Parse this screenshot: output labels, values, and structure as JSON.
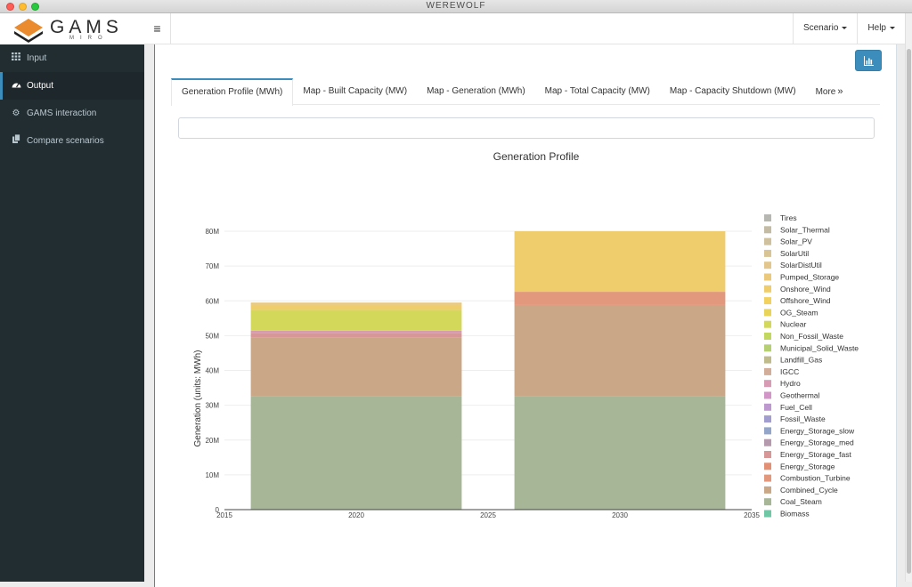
{
  "window": {
    "title": "WEREWOLF"
  },
  "logo": {
    "brand": "GAMS",
    "sub": "MIRO"
  },
  "header": {
    "menu_icon": "hamburger-icon",
    "scenario_label": "Scenario",
    "help_label": "Help"
  },
  "sidebar": {
    "items": [
      {
        "label": "Input",
        "icon": "grid-icon",
        "active": false
      },
      {
        "label": "Output",
        "icon": "dashboard-icon",
        "active": true
      },
      {
        "label": "GAMS interaction",
        "icon": "gear-icon",
        "active": false
      },
      {
        "label": "Compare scenarios",
        "icon": "copy-icon",
        "active": false
      }
    ]
  },
  "tabs": [
    {
      "label": "Generation Profile (MWh)",
      "active": true
    },
    {
      "label": "Map - Built Capacity (MW)",
      "active": false
    },
    {
      "label": "Map - Generation (MWh)",
      "active": false
    },
    {
      "label": "Map - Total Capacity (MW)",
      "active": false
    },
    {
      "label": "Map - Capacity Shutdown (MW)",
      "active": false
    }
  ],
  "more_label": "More",
  "search": {
    "value": "",
    "placeholder": ""
  },
  "colors": {
    "accent": "#3c8dbc",
    "sidebar_bg": "#222d32"
  },
  "chart_data": {
    "type": "bar",
    "stacked": true,
    "title": "Generation Profile",
    "xlabel": "",
    "ylabel": "Generation (units: MWh)",
    "x": [
      2020,
      2030
    ],
    "xlim": [
      2015,
      2035
    ],
    "xticks": [
      "2015",
      "2020",
      "2025",
      "2030",
      "2035"
    ],
    "ylim": [
      0,
      80000000
    ],
    "yticks": [
      "0",
      "10M",
      "20M",
      "30M",
      "40M",
      "50M",
      "60M",
      "70M",
      "80M"
    ],
    "grid": true,
    "legend_position": "right",
    "legend": [
      {
        "name": "Tires",
        "color": "#b7b7b2"
      },
      {
        "name": "Solar_Thermal",
        "color": "#c4bba4"
      },
      {
        "name": "Solar_PV",
        "color": "#cfc09e"
      },
      {
        "name": "SolarUtil",
        "color": "#d9c496"
      },
      {
        "name": "SolarDistUtil",
        "color": "#e2c68c"
      },
      {
        "name": "Pumped_Storage",
        "color": "#eac97d"
      },
      {
        "name": "Onshore_Wind",
        "color": "#f0cd6c"
      },
      {
        "name": "Offshore_Wind",
        "color": "#f3d15f"
      },
      {
        "name": "OG_Steam",
        "color": "#e7d458"
      },
      {
        "name": "Nuclear",
        "color": "#d4d85a"
      },
      {
        "name": "Non_Fossil_Waste",
        "color": "#c2d760"
      },
      {
        "name": "Municipal_Solid_Waste",
        "color": "#b6cf72"
      },
      {
        "name": "Landfill_Gas",
        "color": "#c0bb8b"
      },
      {
        "name": "IGCC",
        "color": "#d2ad99"
      },
      {
        "name": "Hydro",
        "color": "#d89bb4"
      },
      {
        "name": "Geothermal",
        "color": "#d394c7"
      },
      {
        "name": "Fuel_Cell",
        "color": "#bd98cf"
      },
      {
        "name": "Fossil_Waste",
        "color": "#a19ecf"
      },
      {
        "name": "Energy_Storage_slow",
        "color": "#93a5c8"
      },
      {
        "name": "Energy_Storage_med",
        "color": "#b59aae"
      },
      {
        "name": "Energy_Storage_fast",
        "color": "#d79797"
      },
      {
        "name": "Energy_Storage",
        "color": "#e28f73"
      },
      {
        "name": "Combustion_Turbine",
        "color": "#e2987c"
      },
      {
        "name": "Combined_Cycle",
        "color": "#c9a787"
      },
      {
        "name": "Coal_Steam",
        "color": "#a6b697"
      },
      {
        "name": "Biomass",
        "color": "#6fc7a5"
      }
    ],
    "series": [
      {
        "name": "Coal_Steam",
        "values": [
          32500000,
          32500000
        ]
      },
      {
        "name": "Combined_Cycle",
        "values": [
          17000000,
          26300000
        ]
      },
      {
        "name": "Combustion_Turbine",
        "values": [
          0,
          3800000
        ]
      },
      {
        "name": "Energy_Storage_fast",
        "values": [
          1300000,
          0
        ]
      },
      {
        "name": "Hydro",
        "values": [
          600000,
          0
        ]
      },
      {
        "name": "Nuclear",
        "values": [
          6000000,
          0
        ]
      },
      {
        "name": "Onshore_Wind",
        "values": [
          1400000,
          17400000
        ]
      },
      {
        "name": "Pumped_Storage",
        "values": [
          700000,
          0
        ]
      }
    ]
  }
}
